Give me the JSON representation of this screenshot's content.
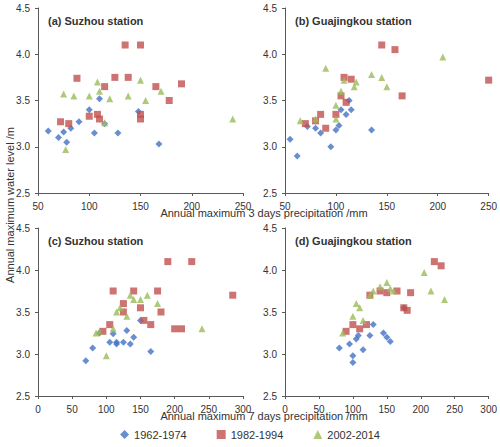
{
  "chart_data": [
    {
      "type": "scatter",
      "title": "(a) Suzhou station",
      "xlabel": "Annual maximum 3 days precipitation /mm",
      "ylabel": "Annual maximum water level /m",
      "legend": "bottom",
      "grid": false,
      "xlim": [
        50,
        250
      ],
      "xticks": [
        50,
        100,
        150,
        200,
        250
      ],
      "ylim": [
        2.5,
        4.5
      ],
      "yticks": [
        2.5,
        {
          "value": 3,
          "label": "3.0"
        },
        3.5,
        {
          "value": 4,
          "label": "4.0"
        },
        4.5
      ],
      "series": [
        {
          "name": "1962-1974",
          "color": "#4472c4",
          "marker": "diamond",
          "x": [
            60,
            70,
            75,
            78,
            82,
            90,
            100,
            105,
            110,
            115,
            128,
            148,
            168
          ],
          "values": [
            3.17,
            3.1,
            3.16,
            3.05,
            3.2,
            3.27,
            3.4,
            3.15,
            3.52,
            3.25,
            3.15,
            3.38,
            3.03
          ]
        },
        {
          "name": "1982-1994",
          "color": "#c0504d",
          "marker": "square",
          "x": [
            72,
            80,
            88,
            100,
            108,
            110,
            115,
            125,
            135,
            138,
            150,
            150,
            150,
            165,
            178,
            190
          ],
          "values": [
            3.27,
            3.25,
            3.74,
            3.33,
            3.35,
            3.3,
            3.65,
            3.75,
            4.1,
            3.75,
            4.1,
            3.35,
            3.3,
            3.65,
            3.5,
            3.68
          ]
        },
        {
          "name": "2002-2014",
          "color": "#9bbb59",
          "marker": "triangle",
          "x": [
            75,
            77,
            85,
            100,
            108,
            110,
            115,
            120,
            138,
            150,
            155,
            170,
            240
          ],
          "values": [
            3.57,
            2.97,
            3.55,
            3.55,
            3.7,
            3.6,
            3.26,
            3.52,
            3.55,
            3.72,
            3.5,
            3.6,
            3.3
          ]
        }
      ]
    },
    {
      "type": "scatter",
      "title": "(b) Guajingkou station",
      "grid": false,
      "xlim": [
        50,
        250
      ],
      "xticks": [
        50,
        100,
        150,
        200,
        250
      ],
      "ylim": [
        2.5,
        4.5
      ],
      "yticks": [
        2.5,
        {
          "value": 3,
          "label": "3.0"
        },
        3.5,
        {
          "value": 4,
          "label": "4.0"
        },
        4.5
      ],
      "series": [
        {
          "name": "1962-1974",
          "color": "#4472c4",
          "marker": "diamond",
          "x": [
            55,
            62,
            72,
            80,
            85,
            95,
            100,
            103,
            105,
            110,
            113,
            115,
            135
          ],
          "values": [
            3.08,
            2.9,
            3.22,
            3.2,
            3.15,
            3.0,
            3.18,
            3.23,
            3.4,
            3.35,
            3.5,
            3.4,
            3.18
          ]
        },
        {
          "name": "1982-1994",
          "color": "#c0504d",
          "marker": "square",
          "x": [
            70,
            80,
            85,
            90,
            100,
            105,
            108,
            110,
            115,
            145,
            158,
            165,
            250
          ],
          "values": [
            3.25,
            3.28,
            3.35,
            3.2,
            3.35,
            3.55,
            3.75,
            3.48,
            3.73,
            4.1,
            4.05,
            3.55,
            3.72
          ]
        },
        {
          "name": "2002-2014",
          "color": "#9bbb59",
          "marker": "triangle",
          "x": [
            65,
            80,
            90,
            100,
            100,
            105,
            108,
            118,
            120,
            135,
            145,
            150,
            205
          ],
          "values": [
            3.28,
            3.3,
            3.85,
            3.45,
            3.3,
            3.6,
            3.72,
            3.65,
            3.7,
            3.78,
            3.75,
            3.65,
            3.97
          ]
        }
      ]
    },
    {
      "type": "scatter",
      "title": "(c) Suzhou station",
      "xlabel": "Annual maximum 7 days precipitation /mm",
      "grid": false,
      "xlim": [
        0,
        300
      ],
      "xticks": [
        0,
        50,
        100,
        150,
        200,
        250,
        300
      ],
      "ylim": [
        2.5,
        4.5
      ],
      "yticks": [
        2.5,
        {
          "value": 3,
          "label": "3.0"
        },
        3.5,
        {
          "value": 4,
          "label": "4.0"
        },
        4.5
      ],
      "series": [
        {
          "name": "1962-1974",
          "color": "#4472c4",
          "marker": "diamond",
          "x": [
            70,
            80,
            90,
            105,
            110,
            115,
            115,
            125,
            130,
            135,
            140,
            150,
            165
          ],
          "values": [
            2.92,
            3.07,
            3.25,
            3.14,
            3.24,
            3.14,
            3.12,
            3.14,
            3.28,
            3.12,
            3.2,
            3.4,
            3.03
          ]
        },
        {
          "name": "1982-1994",
          "color": "#c0504d",
          "marker": "square",
          "x": [
            95,
            105,
            110,
            125,
            125,
            140,
            150,
            155,
            165,
            175,
            180,
            190,
            200,
            210,
            225,
            285
          ],
          "values": [
            3.27,
            3.35,
            3.75,
            3.5,
            3.6,
            3.75,
            3.55,
            3.4,
            3.35,
            3.75,
            3.5,
            4.1,
            3.3,
            3.3,
            4.1,
            3.7
          ]
        },
        {
          "name": "2002-2014",
          "color": "#9bbb59",
          "marker": "triangle",
          "x": [
            85,
            90,
            100,
            110,
            115,
            120,
            130,
            135,
            140,
            150,
            160,
            175,
            240
          ],
          "values": [
            3.25,
            3.27,
            2.98,
            3.3,
            3.5,
            3.55,
            3.45,
            3.7,
            3.65,
            3.65,
            3.7,
            3.6,
            3.3
          ]
        }
      ]
    },
    {
      "type": "scatter",
      "title": "(d) Guajingkou station",
      "grid": false,
      "xlim": [
        0,
        300
      ],
      "xticks": [
        0,
        50,
        100,
        150,
        200,
        250,
        300
      ],
      "ylim": [
        2.5,
        4.5
      ],
      "yticks": [
        2.5,
        {
          "value": 3,
          "label": "3.0"
        },
        3.5,
        {
          "value": 4,
          "label": "4.0"
        },
        4.5
      ],
      "series": [
        {
          "name": "1962-1974",
          "color": "#4472c4",
          "marker": "diamond",
          "x": [
            80,
            95,
            100,
            100,
            105,
            108,
            115,
            125,
            130,
            145,
            150,
            155,
            175
          ],
          "values": [
            3.07,
            3.12,
            2.9,
            2.98,
            3.18,
            3.22,
            3.05,
            3.22,
            3.35,
            3.25,
            3.2,
            3.15,
            3.55
          ]
        },
        {
          "name": "1982-1994",
          "color": "#c0504d",
          "marker": "square",
          "x": [
            90,
            100,
            110,
            120,
            125,
            140,
            150,
            165,
            175,
            180,
            185,
            220,
            230
          ],
          "values": [
            3.27,
            3.35,
            3.3,
            3.35,
            3.7,
            3.75,
            3.73,
            3.75,
            3.55,
            3.52,
            3.73,
            4.1,
            4.05
          ]
        },
        {
          "name": "2002-2014",
          "color": "#9bbb59",
          "marker": "triangle",
          "x": [
            85,
            100,
            105,
            110,
            115,
            125,
            130,
            140,
            150,
            155,
            160,
            205,
            215,
            235
          ],
          "values": [
            3.25,
            3.45,
            3.6,
            3.55,
            3.4,
            3.7,
            3.75,
            3.8,
            3.85,
            3.78,
            3.75,
            3.97,
            3.75,
            3.65
          ]
        }
      ]
    }
  ]
}
